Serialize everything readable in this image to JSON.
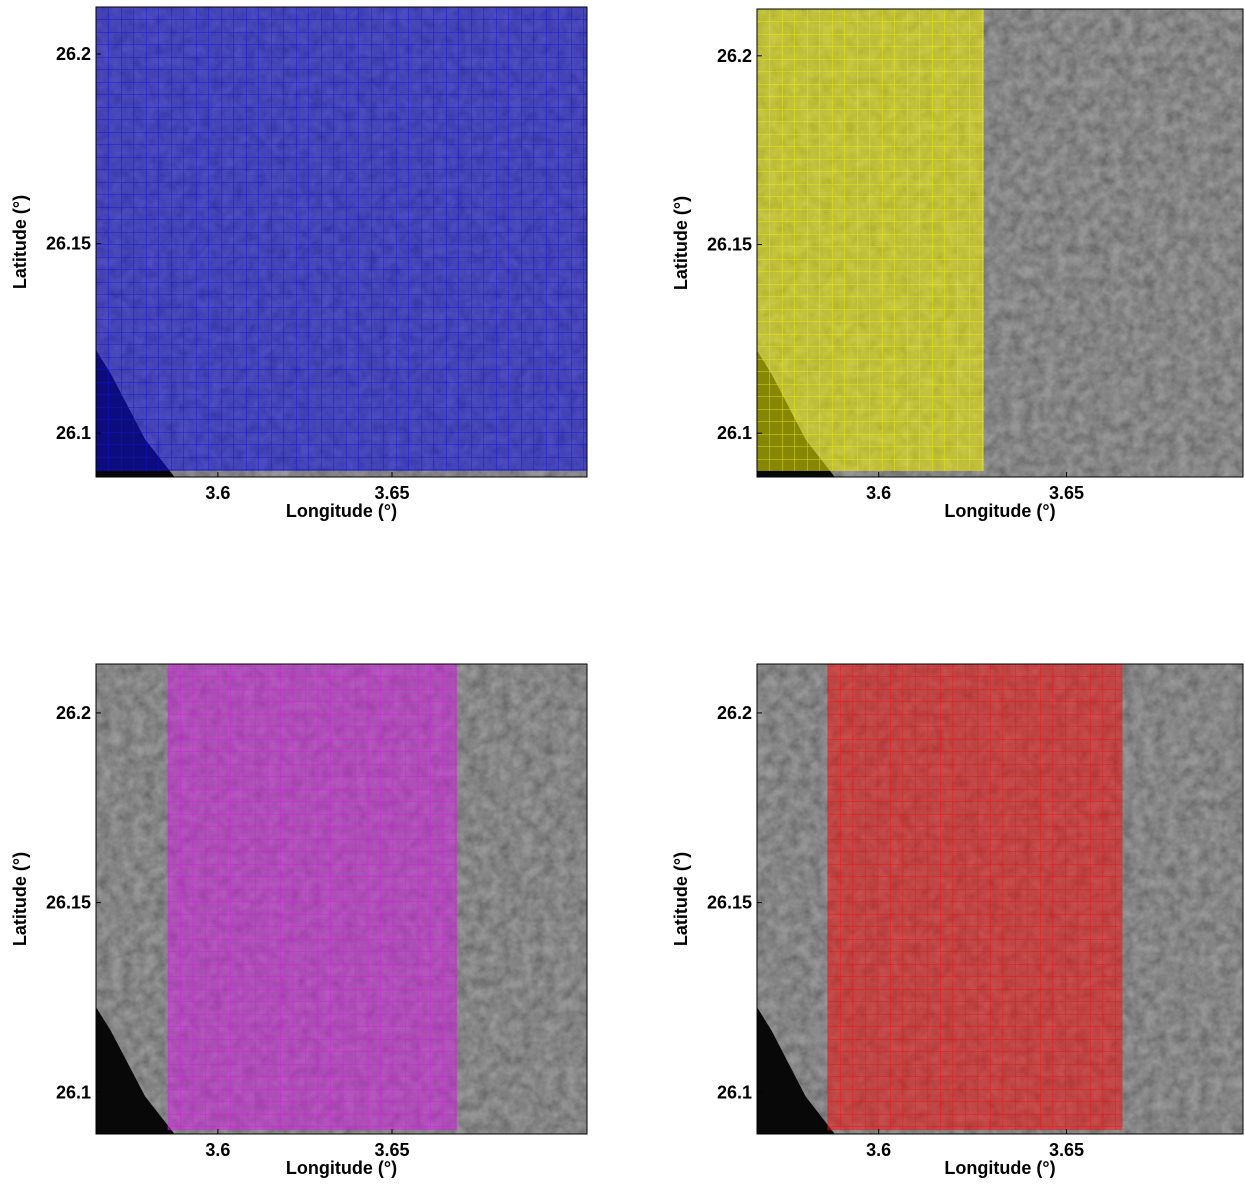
{
  "chart_data": [
    {
      "type": "image",
      "xlabel": "Longitude (°)",
      "ylabel": "Latitude (°)",
      "xlim": [
        3.565,
        3.706
      ],
      "ylim": [
        26.0884,
        26.2124
      ],
      "xticks": [
        3.6,
        3.65
      ],
      "yticks": [
        26.1,
        26.15,
        26.2
      ],
      "overlay": {
        "color": "#1010e0",
        "x": [
          3.565,
          3.706
        ],
        "y": [
          26.09,
          26.2124
        ]
      }
    },
    {
      "type": "image",
      "xlabel": "Longitude (°)",
      "ylabel": "Latitude (°)",
      "xlim": [
        3.5676,
        3.697
      ],
      "ylim": [
        26.0884,
        26.2124
      ],
      "xticks": [
        3.6,
        3.65
      ],
      "yticks": [
        26.1,
        26.15,
        26.2
      ],
      "overlay": {
        "color": "#f0f000",
        "x": [
          3.5676,
          3.628
        ],
        "y": [
          26.09,
          26.2124
        ]
      }
    },
    {
      "type": "image",
      "xlabel": "Longitude (°)",
      "ylabel": "Latitude (°)",
      "xlim": [
        3.565,
        3.706
      ],
      "ylim": [
        26.089,
        26.2129
      ],
      "xticks": [
        3.6,
        3.65
      ],
      "yticks": [
        26.1,
        26.15,
        26.2
      ],
      "overlay": {
        "color": "#d020e0",
        "x": [
          3.5856,
          3.6687
        ],
        "y": [
          26.09,
          26.2129
        ]
      }
    },
    {
      "type": "image",
      "xlabel": "Longitude (°)",
      "ylabel": "Latitude (°)",
      "xlim": [
        3.5676,
        3.697
      ],
      "ylim": [
        26.089,
        26.2129
      ],
      "xticks": [
        3.6,
        3.65
      ],
      "yticks": [
        26.1,
        26.15,
        26.2
      ],
      "overlay": {
        "color": "#f01010",
        "x": [
          3.5864,
          3.6649
        ],
        "y": [
          26.09,
          26.2129
        ]
      }
    }
  ]
}
